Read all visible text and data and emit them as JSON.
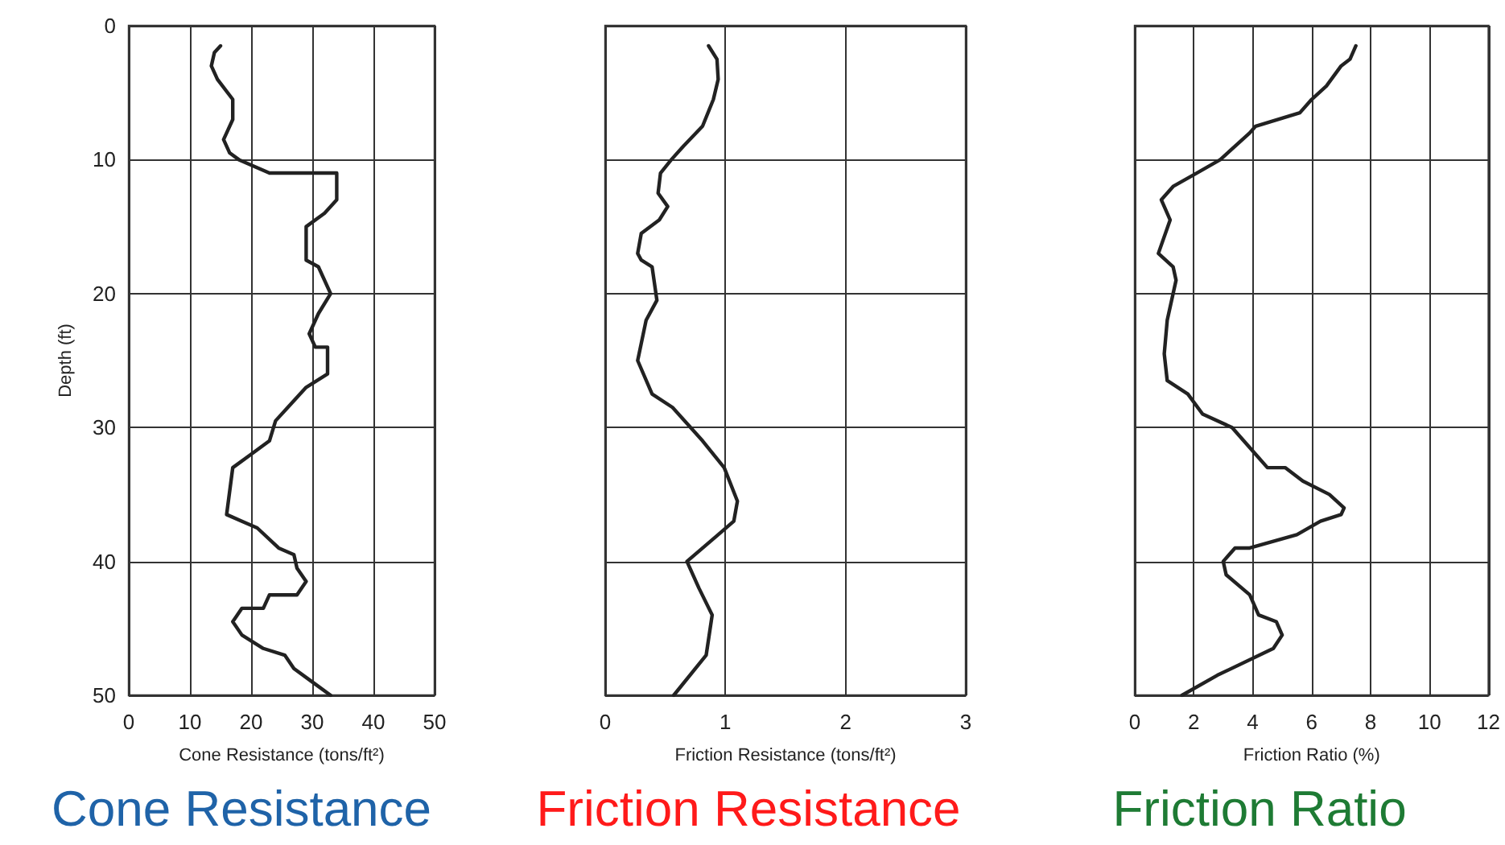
{
  "chart_data": [
    {
      "type": "line",
      "title": "Cone Resistance",
      "xlabel": "Cone Resistance (tons/ft²)",
      "ylabel": "Depth (ft)",
      "xlim": [
        0,
        50
      ],
      "xticks": [
        0,
        10,
        20,
        30,
        40,
        50
      ],
      "ylim": [
        50,
        0
      ],
      "yticks": [
        0,
        10,
        20,
        30,
        40,
        50
      ],
      "grid": true,
      "marker": "none",
      "line_style": "solid",
      "series": [
        {
          "color": "#222222",
          "x": [
            15,
            14,
            13.5,
            14.5,
            17,
            17,
            16,
            15.5,
            16.5,
            18,
            23,
            34,
            34,
            32,
            29,
            29,
            31,
            33,
            31,
            29.5,
            30.5,
            32.5,
            32.5,
            29,
            26,
            24,
            23,
            20,
            17,
            16,
            18.5,
            21,
            24.5,
            27,
            27.5,
            29,
            27.5,
            23,
            22,
            18.5,
            17,
            18.5,
            22,
            25.5,
            27,
            30,
            33
          ],
          "values": [
            1.5,
            2,
            3,
            4,
            5.5,
            7,
            8,
            8.5,
            9.5,
            10,
            11,
            11,
            13,
            14,
            15,
            17.5,
            18,
            20,
            21.5,
            23,
            24,
            24,
            26,
            27,
            28.5,
            29.5,
            31,
            32,
            33,
            36.5,
            37,
            37.5,
            39,
            39.5,
            40.5,
            41.5,
            42.5,
            42.5,
            43.5,
            43.5,
            44.5,
            45.5,
            46.5,
            47,
            48,
            49,
            50
          ]
        }
      ]
    },
    {
      "type": "line",
      "title": "Friction Resistance",
      "xlabel": "Friction Resistance (tons/ft²)",
      "xlim": [
        0,
        3
      ],
      "xticks": [
        0,
        1,
        2,
        3
      ],
      "ylim": [
        50,
        0
      ],
      "yticks": [
        0,
        10,
        20,
        30,
        40,
        50
      ],
      "grid": true,
      "tick_labels": "x",
      "marker": "none",
      "line_style": "solid",
      "series": [
        {
          "color": "#222222",
          "x": [
            0.86,
            0.93,
            0.94,
            0.9,
            0.81,
            0.65,
            0.55,
            0.46,
            0.44,
            0.52,
            0.45,
            0.3,
            0.27,
            0.3,
            0.39,
            0.43,
            0.34,
            0.27,
            0.39,
            0.56,
            0.81,
            0.99,
            1.1,
            1.07,
            0.94,
            0.68,
            0.78,
            0.89,
            0.84,
            0.57
          ],
          "values": [
            1.5,
            2.5,
            4,
            5.5,
            7.5,
            9,
            10,
            11,
            12.5,
            13.5,
            14.5,
            15.5,
            17,
            17.5,
            18,
            20.5,
            22,
            25,
            27.5,
            28.5,
            31,
            33,
            35.5,
            37,
            38,
            40,
            42,
            44,
            47,
            50
          ]
        }
      ]
    },
    {
      "type": "line",
      "title": "Friction Ratio",
      "xlabel": "Friction Ratio (%)",
      "xlim": [
        0,
        12
      ],
      "xticks": [
        0,
        2,
        4,
        6,
        8,
        10,
        12
      ],
      "ylim": [
        50,
        0
      ],
      "yticks": [
        0,
        10,
        20,
        30,
        40,
        50
      ],
      "grid": true,
      "tick_labels": "x",
      "marker": "none",
      "line_style": "solid",
      "series": [
        {
          "color": "#222222",
          "x": [
            7.5,
            7.3,
            7,
            6.5,
            6,
            5.6,
            4.1,
            3.9,
            2.9,
            2.1,
            1.3,
            0.9,
            1.2,
            0.8,
            1.3,
            1.4,
            1.1,
            1,
            1.1,
            1.8,
            2.3,
            3.3,
            4.1,
            4.5,
            5.1,
            5.7,
            6.6,
            7.1,
            7,
            6.3,
            5.5,
            3.9,
            3.4,
            3,
            3.1,
            3.9,
            4.2,
            4.8,
            5,
            4.7,
            2.8,
            1.6
          ],
          "values": [
            1.5,
            2.5,
            3,
            4.5,
            5.5,
            6.5,
            7.5,
            8,
            10,
            11,
            12,
            13,
            14.5,
            17,
            18,
            19,
            22,
            24.5,
            26.5,
            27.5,
            29,
            30,
            32,
            33,
            33,
            34,
            35,
            36,
            36.5,
            37,
            38,
            39,
            39,
            40,
            41,
            42.5,
            44,
            44.5,
            45.5,
            46.5,
            48.5,
            50
          ]
        }
      ]
    }
  ]
}
